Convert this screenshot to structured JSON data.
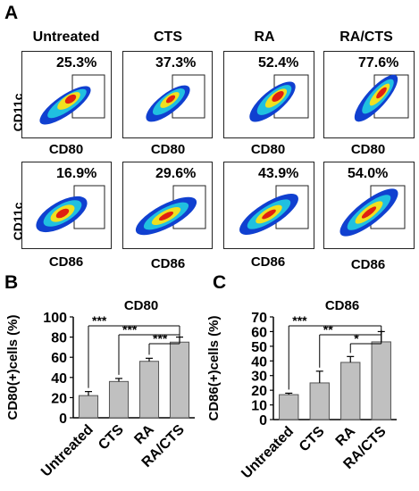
{
  "panel_a": {
    "letter": "A",
    "conditions": [
      "Untreated",
      "CTS",
      "RA",
      "RA/CTS"
    ],
    "row1": {
      "ylabel": "CD11c",
      "xlabel": "CD80",
      "percents": [
        "25.3%",
        "37.3%",
        "52.4%",
        "77.6%"
      ]
    },
    "row2": {
      "ylabel": "CD11c",
      "xlabel": "CD86",
      "percents": [
        "16.9%",
        "29.6%",
        "43.9%",
        "54.0%"
      ]
    }
  },
  "panel_b": {
    "letter": "B"
  },
  "panel_c": {
    "letter": "C"
  },
  "colors": {
    "bar": "#c0c0c0",
    "density_hot": "#e02010",
    "density_mid": "#f0e020",
    "density_cool": "#20c0e0",
    "density_low": "#1040d0"
  },
  "chart_data": [
    {
      "type": "bar",
      "title": "CD80",
      "ylabel": "CD80(+)cells (%)",
      "categories": [
        "Untreated",
        "CTS",
        "RA",
        "RA/CTS"
      ],
      "values": [
        22,
        36,
        56,
        75
      ],
      "errors": [
        4,
        3,
        3,
        5
      ],
      "ylim": [
        0,
        100
      ],
      "yticks": [
        0,
        20,
        40,
        60,
        80,
        100
      ],
      "significance": [
        {
          "from": 0,
          "to": 3,
          "label": "***"
        },
        {
          "from": 1,
          "to": 3,
          "label": "***"
        },
        {
          "from": 2,
          "to": 3,
          "label": "***"
        }
      ]
    },
    {
      "type": "bar",
      "title": "CD86",
      "ylabel": "CD86(+)cells (%)",
      "categories": [
        "Untreated",
        "CTS",
        "RA",
        "RA/CTS"
      ],
      "values": [
        17,
        25,
        39,
        53
      ],
      "errors": [
        1,
        8,
        4,
        7
      ],
      "ylim": [
        0,
        70
      ],
      "yticks": [
        0,
        10,
        20,
        30,
        40,
        50,
        60,
        70
      ],
      "significance": [
        {
          "from": 0,
          "to": 3,
          "label": "***"
        },
        {
          "from": 1,
          "to": 3,
          "label": "**"
        },
        {
          "from": 2,
          "to": 3,
          "label": "*"
        }
      ]
    }
  ]
}
